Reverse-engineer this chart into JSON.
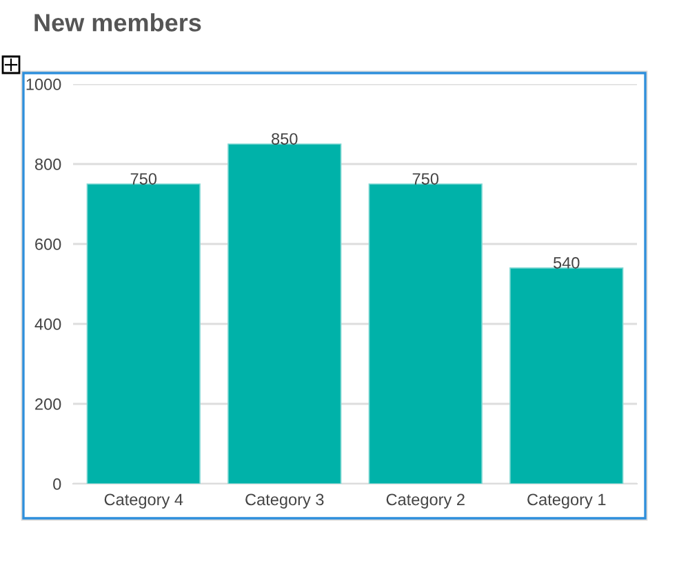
{
  "chart_data": {
    "type": "bar",
    "title": "New members",
    "categories": [
      "Category 4",
      "Category 3",
      "Category 2",
      "Category 1"
    ],
    "values": [
      750,
      850,
      750,
      540
    ],
    "color": "#00b2a9",
    "ylim": [
      0,
      1000
    ],
    "yticks": [
      0,
      200,
      400,
      600,
      800,
      1000
    ],
    "grid": "y",
    "data_labels": true,
    "legend": false
  }
}
